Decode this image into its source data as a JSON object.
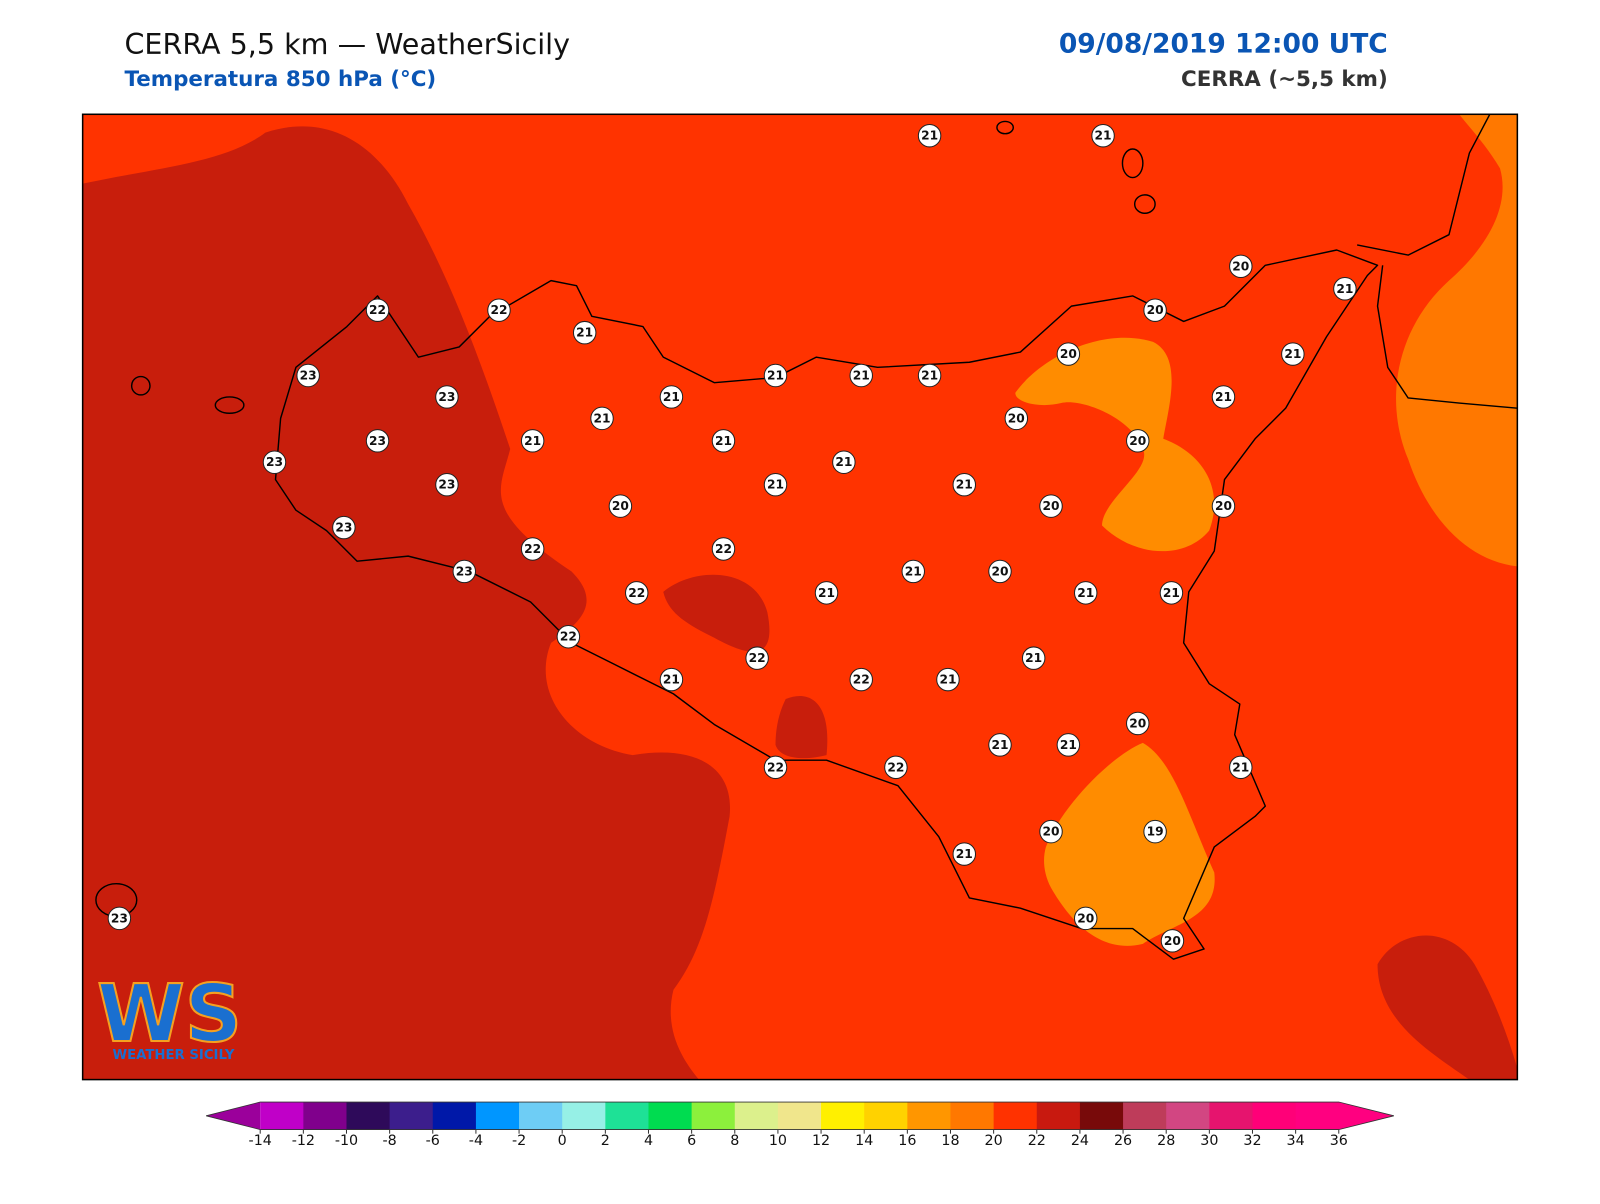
{
  "header": {
    "title": "CERRA 5,5 km — WeatherSicily",
    "subtitle": "Temperatura 850 hPa (°C)",
    "datetime": "09/08/2019 12:00 UTC",
    "model": "CERRA (~5,5 km)"
  },
  "stations": [
    21,
    21,
    20,
    21,
    20,
    22,
    22,
    21,
    20,
    21,
    23,
    23,
    21,
    21,
    21,
    21,
    21,
    21,
    20,
    23,
    21,
    21,
    20,
    21,
    23,
    23,
    21,
    21,
    20,
    20,
    20,
    23,
    22,
    22,
    23,
    21,
    20,
    22,
    21,
    21,
    21,
    22,
    21,
    22,
    21,
    22,
    21,
    20,
    21,
    21,
    21,
    22,
    22,
    20,
    19,
    21,
    23,
    20,
    20
  ],
  "colorbar": {
    "ticks": [
      -14,
      -12,
      -10,
      -8,
      -6,
      -4,
      -2,
      0,
      2,
      4,
      6,
      8,
      10,
      12,
      14,
      16,
      18,
      20,
      22,
      24,
      26,
      28,
      30,
      32,
      34,
      36
    ],
    "colors": [
      "#c000c8",
      "#80008c",
      "#2e0a5a",
      "#3c1e8c",
      "#0018a8",
      "#0096ff",
      "#6ecdf5",
      "#96f0e6",
      "#1ee196",
      "#00dc50",
      "#8cf03c",
      "#dcf08c",
      "#f0e68c",
      "#fff000",
      "#ffd200",
      "#ff9600",
      "#ff7800",
      "#ff3200",
      "#c8190f",
      "#780a0a",
      "#be3c5a",
      "#d24682",
      "#e6146e",
      "#ff0078",
      "#ff0080"
    ],
    "under": "#9b009b",
    "over": "#ff0080"
  },
  "logo": {
    "mark": "WS",
    "name": "WEATHER SICILY"
  }
}
